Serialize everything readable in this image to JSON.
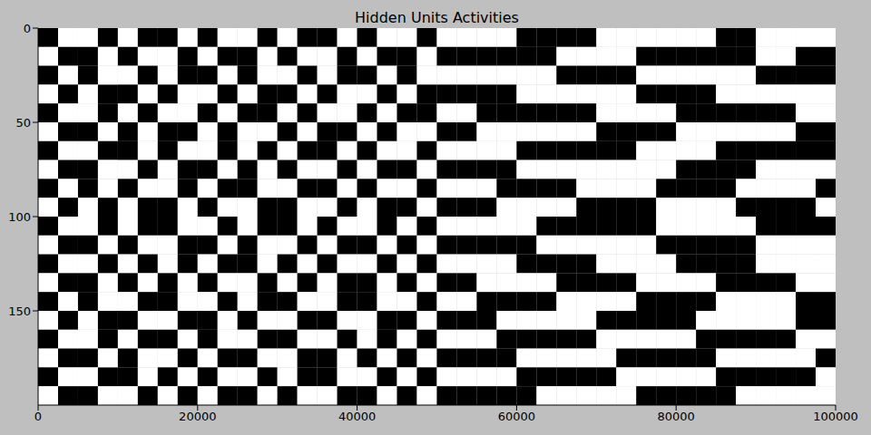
{
  "chart_data": {
    "type": "heatmap",
    "title": "Hidden Units Activities",
    "xlim": [
      0,
      100000
    ],
    "xticks": [
      0,
      20000,
      40000,
      60000,
      80000,
      100000
    ],
    "ylim": [
      0,
      200
    ],
    "yticks": [
      0,
      50,
      100,
      150
    ],
    "colors": [
      "#000000",
      "#ffffff"
    ],
    "cells": [
      [
        0,
        1,
        1,
        0,
        1,
        0,
        0,
        1,
        0,
        1,
        1,
        0,
        1,
        0,
        0,
        1,
        0,
        1,
        1,
        0,
        1,
        1,
        1,
        1,
        0,
        0,
        0,
        0,
        1,
        1,
        1,
        1,
        1,
        1,
        0,
        0,
        1,
        1,
        1,
        1
      ],
      [
        1,
        0,
        0,
        1,
        0,
        1,
        1,
        0,
        1,
        0,
        0,
        1,
        0,
        1,
        1,
        0,
        1,
        0,
        0,
        1,
        0,
        0,
        0,
        0,
        0,
        0,
        1,
        1,
        1,
        1,
        0,
        0,
        0,
        0,
        0,
        0,
        1,
        1,
        0,
        0
      ],
      [
        0,
        1,
        0,
        1,
        1,
        0,
        1,
        0,
        0,
        1,
        0,
        1,
        1,
        0,
        1,
        0,
        0,
        1,
        0,
        1,
        1,
        1,
        1,
        1,
        1,
        1,
        0,
        0,
        0,
        0,
        1,
        1,
        1,
        1,
        1,
        1,
        0,
        0,
        0,
        0
      ],
      [
        1,
        0,
        1,
        0,
        0,
        1,
        0,
        1,
        1,
        0,
        1,
        0,
        0,
        1,
        0,
        1,
        1,
        0,
        1,
        0,
        0,
        0,
        0,
        0,
        1,
        1,
        1,
        1,
        1,
        1,
        0,
        0,
        0,
        0,
        1,
        1,
        1,
        1,
        1,
        1
      ],
      [
        0,
        1,
        1,
        0,
        1,
        0,
        1,
        1,
        0,
        1,
        0,
        0,
        1,
        0,
        1,
        1,
        0,
        1,
        0,
        0,
        1,
        1,
        0,
        0,
        0,
        0,
        0,
        0,
        1,
        1,
        1,
        1,
        0,
        0,
        0,
        0,
        0,
        0,
        1,
        1
      ],
      [
        1,
        0,
        0,
        1,
        0,
        1,
        0,
        0,
        1,
        0,
        1,
        1,
        0,
        1,
        0,
        0,
        1,
        0,
        1,
        1,
        0,
        0,
        1,
        1,
        1,
        1,
        1,
        1,
        0,
        0,
        0,
        0,
        1,
        1,
        1,
        1,
        1,
        1,
        0,
        0
      ],
      [
        0,
        1,
        1,
        0,
        0,
        1,
        0,
        1,
        1,
        0,
        1,
        0,
        1,
        0,
        0,
        1,
        0,
        1,
        1,
        0,
        1,
        1,
        1,
        1,
        0,
        0,
        0,
        0,
        0,
        0,
        1,
        1,
        1,
        1,
        0,
        0,
        0,
        0,
        0,
        0
      ],
      [
        1,
        0,
        0,
        1,
        1,
        0,
        1,
        0,
        0,
        1,
        0,
        1,
        0,
        1,
        1,
        0,
        1,
        0,
        0,
        1,
        0,
        0,
        0,
        0,
        1,
        1,
        1,
        1,
        1,
        1,
        1,
        1,
        0,
        0,
        0,
        0,
        1,
        1,
        1,
        1
      ],
      [
        0,
        1,
        0,
        1,
        0,
        1,
        1,
        0,
        1,
        0,
        0,
        1,
        1,
        0,
        0,
        1,
        0,
        1,
        1,
        0,
        1,
        1,
        1,
        0,
        0,
        0,
        0,
        1,
        1,
        1,
        1,
        0,
        0,
        0,
        0,
        1,
        1,
        1,
        1,
        0
      ],
      [
        1,
        0,
        1,
        0,
        1,
        0,
        0,
        1,
        0,
        1,
        1,
        0,
        0,
        1,
        1,
        0,
        1,
        0,
        0,
        1,
        0,
        0,
        0,
        1,
        1,
        1,
        1,
        0,
        0,
        0,
        0,
        1,
        1,
        1,
        1,
        0,
        0,
        0,
        0,
        1
      ],
      [
        0,
        1,
        1,
        0,
        1,
        0,
        0,
        1,
        1,
        0,
        1,
        0,
        0,
        1,
        0,
        1,
        1,
        0,
        1,
        0,
        1,
        1,
        1,
        1,
        1,
        0,
        0,
        0,
        0,
        0,
        0,
        1,
        1,
        1,
        1,
        1,
        0,
        0,
        0,
        0
      ],
      [
        1,
        0,
        0,
        1,
        0,
        1,
        1,
        0,
        0,
        1,
        0,
        1,
        1,
        0,
        1,
        0,
        0,
        1,
        0,
        1,
        0,
        0,
        0,
        0,
        0,
        1,
        1,
        1,
        1,
        1,
        1,
        0,
        0,
        0,
        0,
        0,
        1,
        1,
        1,
        1
      ],
      [
        0,
        1,
        1,
        0,
        1,
        0,
        1,
        0,
        1,
        0,
        0,
        1,
        0,
        1,
        0,
        1,
        1,
        0,
        1,
        0,
        1,
        1,
        1,
        1,
        0,
        0,
        0,
        0,
        1,
        1,
        1,
        1,
        0,
        0,
        0,
        0,
        1,
        1,
        1,
        1
      ],
      [
        1,
        0,
        0,
        1,
        0,
        1,
        0,
        1,
        0,
        1,
        1,
        0,
        1,
        0,
        1,
        0,
        0,
        1,
        0,
        1,
        0,
        0,
        1,
        1,
        1,
        1,
        0,
        0,
        0,
        0,
        1,
        1,
        1,
        1,
        0,
        0,
        0,
        0,
        1,
        1
      ],
      [
        0,
        1,
        0,
        1,
        1,
        0,
        0,
        1,
        1,
        0,
        1,
        0,
        0,
        1,
        1,
        0,
        0,
        1,
        1,
        0,
        1,
        1,
        0,
        0,
        0,
        0,
        1,
        1,
        1,
        1,
        0,
        0,
        0,
        0,
        1,
        1,
        1,
        1,
        0,
        0
      ],
      [
        1,
        0,
        1,
        0,
        0,
        1,
        1,
        0,
        0,
        1,
        0,
        1,
        1,
        0,
        0,
        1,
        1,
        0,
        0,
        1,
        0,
        0,
        0,
        1,
        1,
        1,
        1,
        1,
        0,
        0,
        0,
        0,
        0,
        1,
        1,
        1,
        1,
        1,
        0,
        0
      ],
      [
        0,
        1,
        1,
        0,
        1,
        0,
        0,
        1,
        0,
        1,
        1,
        0,
        0,
        1,
        1,
        0,
        1,
        0,
        1,
        0,
        1,
        1,
        1,
        0,
        0,
        0,
        0,
        0,
        1,
        1,
        1,
        1,
        1,
        0,
        0,
        0,
        0,
        0,
        1,
        1
      ],
      [
        1,
        0,
        0,
        1,
        0,
        1,
        1,
        0,
        1,
        0,
        0,
        1,
        1,
        0,
        0,
        1,
        0,
        1,
        0,
        1,
        0,
        0,
        0,
        0,
        1,
        1,
        1,
        1,
        1,
        0,
        0,
        0,
        0,
        0,
        1,
        1,
        1,
        1,
        1,
        0
      ],
      [
        0,
        1,
        1,
        0,
        0,
        1,
        0,
        1,
        0,
        1,
        1,
        0,
        1,
        0,
        0,
        1,
        1,
        0,
        1,
        0,
        1,
        1,
        1,
        1,
        0,
        0,
        0,
        0,
        0,
        1,
        1,
        1,
        1,
        1,
        0,
        0,
        0,
        0,
        0,
        1
      ],
      [
        1,
        0,
        0,
        1,
        1,
        0,
        1,
        0,
        1,
        0,
        0,
        1,
        0,
        1,
        1,
        0,
        0,
        1,
        0,
        1,
        0,
        0,
        0,
        0,
        0,
        1,
        1,
        1,
        1,
        1,
        0,
        0,
        0,
        0,
        0,
        1,
        1,
        1,
        1,
        1
      ]
    ]
  }
}
